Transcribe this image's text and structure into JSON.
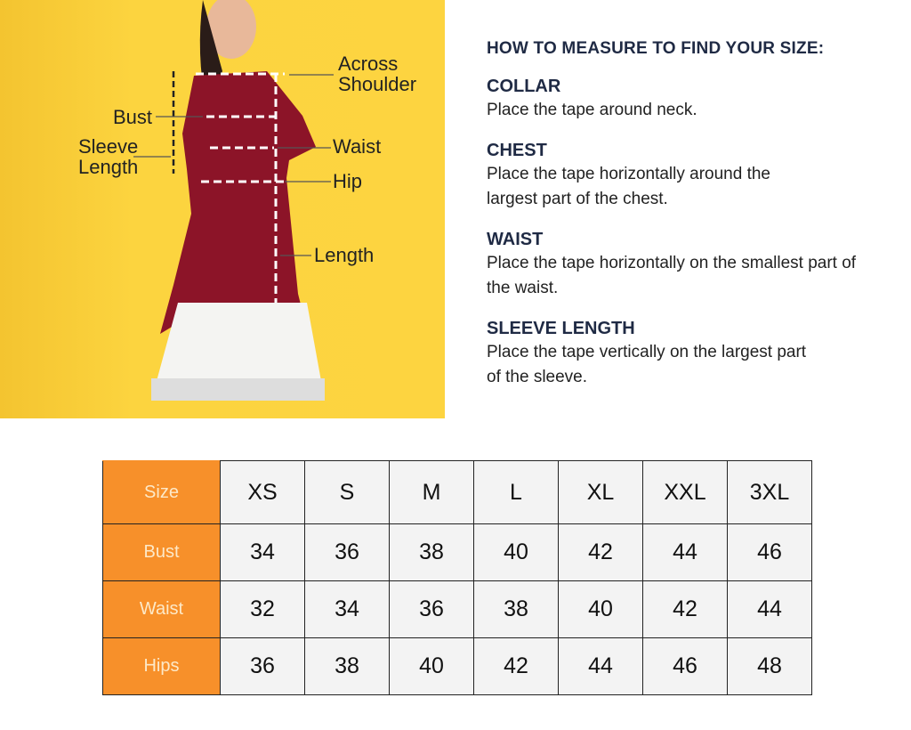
{
  "figure": {
    "labels": {
      "across_shoulder": "Across Shoulder",
      "bust": "Bust",
      "sleeve_length": "Sleeve Length",
      "waist": "Waist",
      "hip": "Hip",
      "length": "Length"
    },
    "background": "#fdd440",
    "dress_color": "#8c1428"
  },
  "guide": {
    "title": "HOW TO MEASURE TO FIND YOUR SIZE:",
    "sections": [
      {
        "heading": "COLLAR",
        "text": "Place the tape around neck."
      },
      {
        "heading": "CHEST",
        "text": "Place the tape horizontally around the largest part of the chest."
      },
      {
        "heading": "WAIST",
        "text": "Place the tape horizontally on the smallest part of the waist."
      },
      {
        "heading": "SLEEVE LENGTH",
        "text": "Place the tape vertically on the largest part of the sleeve."
      }
    ]
  },
  "table": {
    "header_color": "#f7902a",
    "rows": [
      {
        "label": "Size",
        "values": [
          "XS",
          "S",
          "M",
          "L",
          "XL",
          "XXL",
          "3XL"
        ]
      },
      {
        "label": "Bust",
        "values": [
          "34",
          "36",
          "38",
          "40",
          "42",
          "44",
          "46"
        ]
      },
      {
        "label": "Waist",
        "values": [
          "32",
          "34",
          "36",
          "38",
          "40",
          "42",
          "44"
        ]
      },
      {
        "label": "Hips",
        "values": [
          "36",
          "38",
          "40",
          "42",
          "44",
          "46",
          "48"
        ]
      }
    ]
  }
}
